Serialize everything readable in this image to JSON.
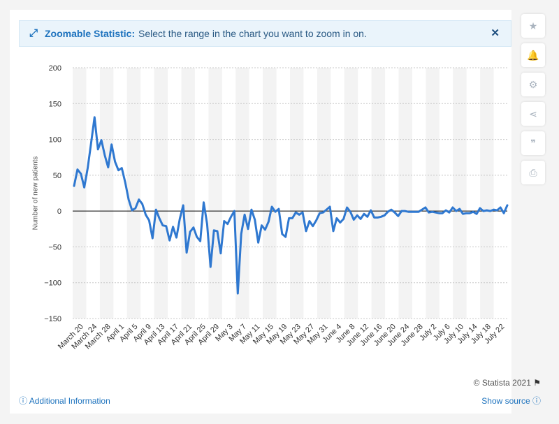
{
  "banner": {
    "icon": "expand-arrows-icon",
    "title": "Zoomable Statistic:",
    "text": "Select the range in the chart you want to zoom in on.",
    "close_icon": "close-icon"
  },
  "sidebar": [
    {
      "name": "star-icon",
      "glyph": "★"
    },
    {
      "name": "bell-icon",
      "glyph": "🔔"
    },
    {
      "name": "gear-icon",
      "glyph": "⚙"
    },
    {
      "name": "share-icon",
      "glyph": "⋖"
    },
    {
      "name": "quote-icon",
      "glyph": "❞"
    },
    {
      "name": "print-icon",
      "glyph": "⎙"
    }
  ],
  "footer": {
    "copyright": "© Statista 2021",
    "additional_info": "Additional Information",
    "show_source": "Show source"
  },
  "colors": {
    "line": "#2f78d0",
    "accent": "#1e73be"
  },
  "chart_data": {
    "type": "line",
    "ylabel": "Number of new patients",
    "xlabel": "",
    "ylim": [
      -150,
      200
    ],
    "yticks": [
      200,
      150,
      100,
      50,
      0,
      -50,
      -100,
      -150
    ],
    "ytick_labels": [
      "200",
      "150",
      "100",
      "50",
      "0",
      "−50",
      "−100",
      "−150"
    ],
    "xtick_labels": [
      "March 20",
      "March 24",
      "March 28",
      "April 1",
      "April 5",
      "April 9",
      "April 13",
      "April 17",
      "April 21",
      "April 25",
      "April 29",
      "May 3",
      "May 7",
      "May 11",
      "May 15",
      "May 19",
      "May 23",
      "May 27",
      "May 31",
      "June 4",
      "June 8",
      "June 12",
      "June 16",
      "June 20",
      "June 24",
      "June 28",
      "July 2",
      "July 6",
      "July 10",
      "July 14",
      "July 18",
      "July 22"
    ],
    "series": [
      {
        "values": [
          35,
          58,
          52,
          33,
          60,
          95,
          131,
          86,
          99,
          78,
          61,
          93,
          69,
          57,
          60,
          40,
          16,
          1,
          4,
          16,
          10,
          -5,
          -13,
          -38,
          2,
          -10,
          -20,
          -21,
          -41,
          -22,
          -37,
          -11,
          8,
          -58,
          -29,
          -23,
          -36,
          -42,
          12,
          -18,
          -78,
          -27,
          -28,
          -59,
          -14,
          -18,
          -8,
          0,
          -115,
          -32,
          -5,
          -25,
          2,
          -12,
          -44,
          -20,
          -26,
          -15,
          6,
          -1,
          3,
          -32,
          -36,
          -10,
          -10,
          -2,
          -5,
          -2,
          -28,
          -14,
          -21,
          -13,
          -3,
          -2,
          2,
          6,
          -28,
          -10,
          -16,
          -11,
          5,
          -1,
          -12,
          -6,
          -11,
          -4,
          -8,
          1,
          -9,
          -9,
          -8,
          -6,
          -1,
          2,
          -2,
          -7,
          0,
          0,
          -1,
          -1,
          -1,
          -1,
          2,
          5,
          -2,
          -1,
          -2,
          -3,
          -3,
          1,
          -2,
          5,
          0,
          3,
          -4,
          -3,
          -3,
          -1,
          -4,
          4,
          0,
          1,
          0,
          2,
          1,
          5,
          -3,
          8
        ]
      }
    ],
    "grid": true,
    "alternating_column_bands": true
  }
}
